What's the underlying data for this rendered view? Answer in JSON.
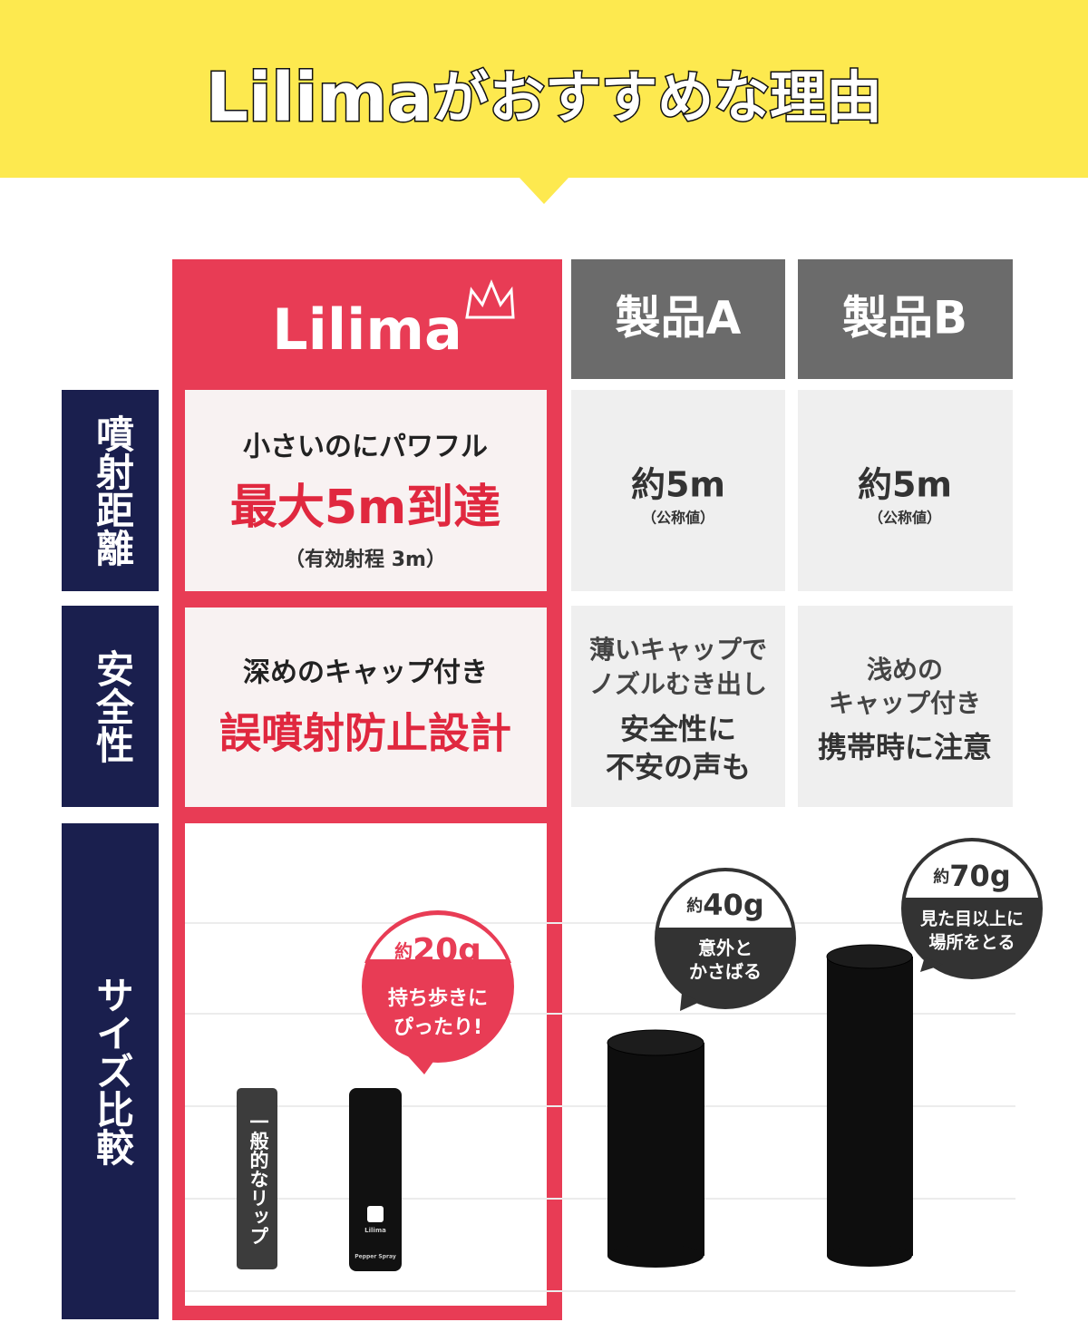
{
  "header": {
    "brand": "Lilima",
    "title": "がおすすめな理由"
  },
  "columns": [
    "Lilima",
    "製品A",
    "製品B"
  ],
  "rows": [
    "噴射距離",
    "安全性",
    "サイズ比較"
  ],
  "distance": {
    "lilima": {
      "catch": "小さいのにパワフル",
      "main": "最大5m到達",
      "note": "（有効射程 3m）"
    },
    "a": {
      "value": "約5m",
      "note": "（公称値）"
    },
    "b": {
      "value": "約5m",
      "note": "（公称値）"
    }
  },
  "safety": {
    "lilima": {
      "catch": "深めのキャップ付き",
      "main": "誤噴射防止設計"
    },
    "a": {
      "lines": [
        "薄いキャップで",
        "ノズルむき出し"
      ],
      "main": [
        "安全性に",
        "不安の声も"
      ]
    },
    "b": {
      "lines": [
        "浅めの",
        "キャップ付き"
      ],
      "main": [
        "携帯時に注意"
      ]
    }
  },
  "size": {
    "lip": "一般的なリップ",
    "bottle": {
      "brand": "Lilima",
      "label": "Pepper Spray"
    },
    "lilima": {
      "prefix": "約",
      "weight": "20g",
      "lines": [
        "持ち歩きに",
        "ぴったり!"
      ]
    },
    "a": {
      "prefix": "約",
      "weight": "40g",
      "lines": [
        "意外と",
        "かさばる"
      ]
    },
    "b": {
      "prefix": "約",
      "weight": "70g",
      "lines": [
        "見た目以上に",
        "場所をとる"
      ]
    }
  }
}
